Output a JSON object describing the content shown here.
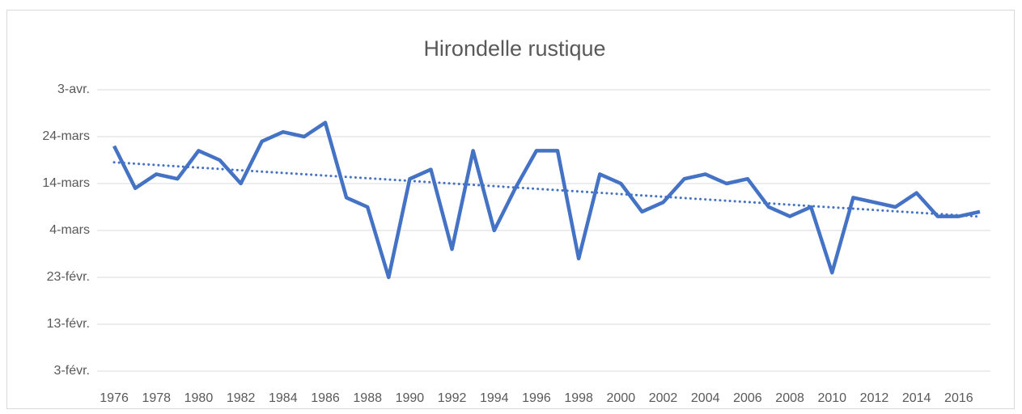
{
  "chart_data": {
    "type": "line",
    "title": "Hirondelle rustique",
    "categories": [
      "1976",
      null,
      "1978",
      null,
      "1980",
      null,
      "1982",
      null,
      "1984",
      null,
      "1986",
      null,
      "1988",
      null,
      "1990",
      null,
      "1992",
      null,
      "1994",
      null,
      "1996",
      null,
      "1998",
      null,
      "2000",
      null,
      "2002",
      null,
      "2004",
      null,
      "2006",
      null,
      "2008",
      null,
      "2010",
      null,
      "2012",
      null,
      "2014",
      null,
      "2016",
      null
    ],
    "series": [
      {
        "name": "Hirondelle rustique",
        "color": "#4472c4",
        "values": [
          82,
          73,
          76,
          75,
          81,
          79,
          74,
          83,
          85,
          84,
          87,
          71,
          69,
          54,
          75,
          77,
          60,
          81,
          64,
          73,
          81,
          81,
          58,
          76,
          74,
          68,
          70,
          75,
          76,
          74,
          75,
          69,
          67,
          69,
          55,
          71,
          70,
          69,
          72,
          67,
          67,
          68
        ]
      }
    ],
    "ylim": [
      34,
      94
    ],
    "yticks": [
      {
        "value": 34,
        "label": "3-févr."
      },
      {
        "value": 44,
        "label": "13-févr."
      },
      {
        "value": 54,
        "label": "23-févr."
      },
      {
        "value": 64,
        "label": "4-mars"
      },
      {
        "value": 74,
        "label": "14-mars"
      },
      {
        "value": 84,
        "label": "24-mars"
      },
      {
        "value": 94,
        "label": "3-avr."
      }
    ],
    "grid": true,
    "trendline": true
  }
}
